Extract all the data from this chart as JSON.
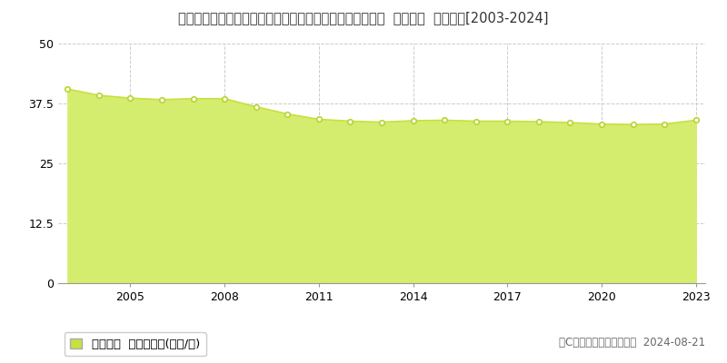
{
  "title": "埼玉県さいたま市見沼区大字御蔵字大ケ谷戸１３２５番６  基準地価  地価推移[2003-2024]",
  "years": [
    2003,
    2004,
    2005,
    2006,
    2007,
    2008,
    2009,
    2010,
    2011,
    2012,
    2013,
    2014,
    2015,
    2016,
    2017,
    2018,
    2019,
    2020,
    2021,
    2022,
    2023
  ],
  "values": [
    40.5,
    39.2,
    38.6,
    38.3,
    38.5,
    38.5,
    36.8,
    35.3,
    34.2,
    33.8,
    33.6,
    33.9,
    34.0,
    33.8,
    33.8,
    33.7,
    33.5,
    33.2,
    33.1,
    33.2,
    34.0
  ],
  "ylim": [
    0,
    50
  ],
  "yticks": [
    0,
    12.5,
    25,
    37.5,
    50
  ],
  "xticks": [
    2005,
    2008,
    2011,
    2014,
    2017,
    2020,
    2023
  ],
  "fill_color": "#d4ed6e",
  "line_color": "#c8e040",
  "marker_color": "#ffffff",
  "marker_edge_color": "#b8d430",
  "grid_color": "#cccccc",
  "bg_color": "#ffffff",
  "plot_bg_color": "#ffffff",
  "legend_label": "基準地価  平均坪単価(万円/坪)",
  "legend_color": "#c8e040",
  "copyright_text": "（C）土地価格ドットコム  2024-08-21",
  "title_fontsize": 10.5,
  "axis_fontsize": 9,
  "legend_fontsize": 9.5,
  "copyright_fontsize": 8.5
}
